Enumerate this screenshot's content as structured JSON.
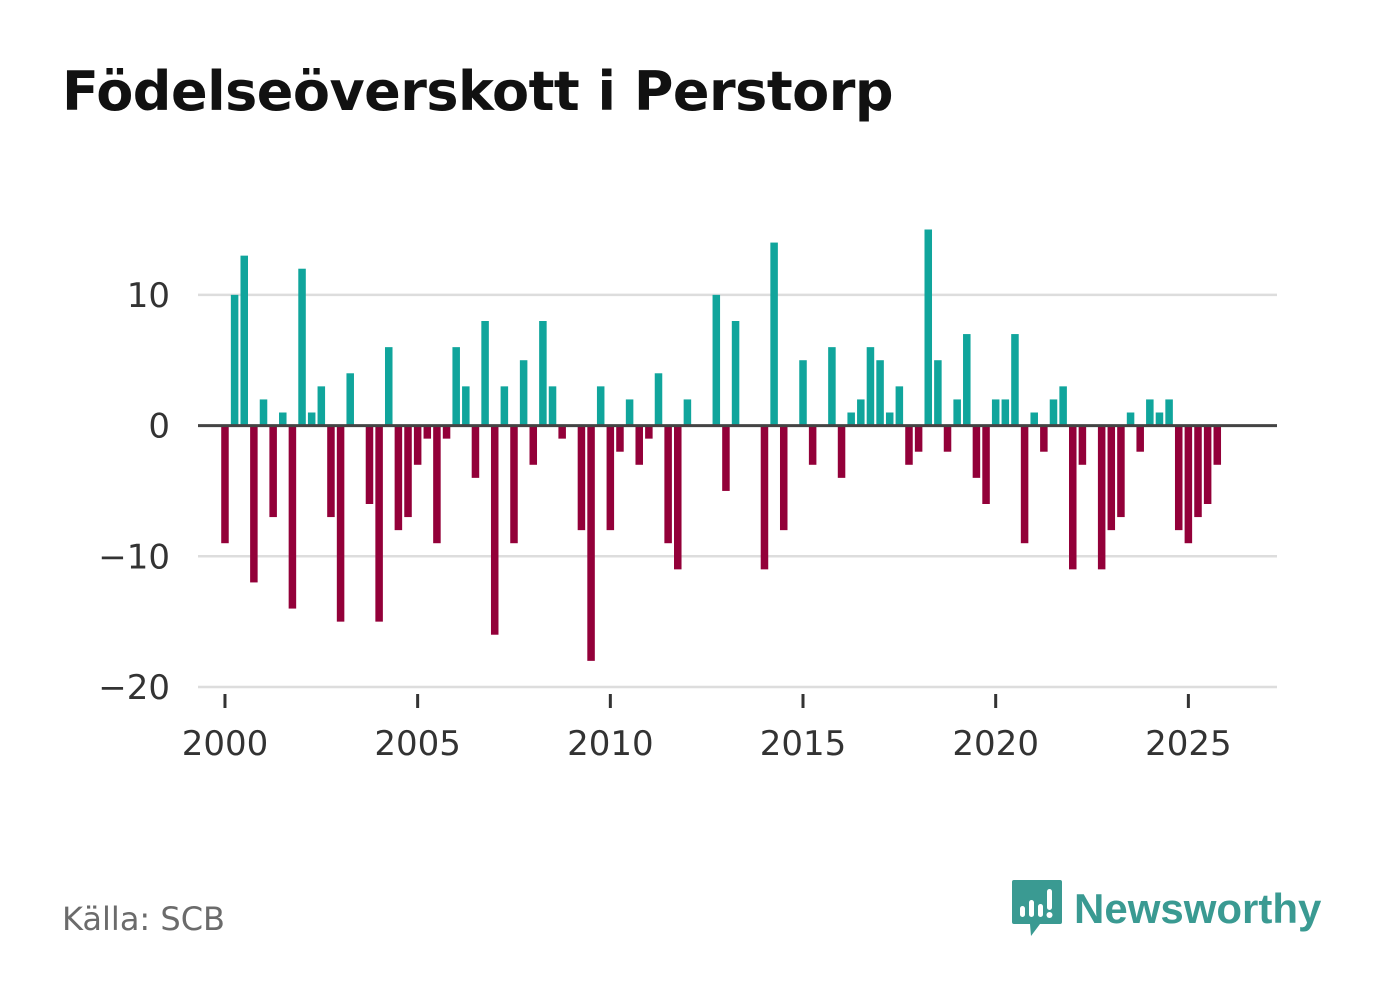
{
  "title": "Födelseöverskott i Perstorp",
  "source": "Källa: SCB",
  "brand": {
    "name": "Newsworthy",
    "icon": "newsworthy-logo-icon",
    "color": "#3a9a92"
  },
  "colors": {
    "positive": "#10a59c",
    "negative": "#930039",
    "grid": "#dddddd",
    "zero_line": "#444444"
  },
  "chart_data": {
    "type": "bar",
    "title": "Födelseöverskott i Perstorp",
    "xlabel": "",
    "ylabel": "",
    "ylim": [
      -20,
      15
    ],
    "xlim": [
      1999.3,
      2027.3
    ],
    "yticks": [
      -20,
      -10,
      0,
      10
    ],
    "ytick_labels": [
      "−20",
      "−10",
      "0",
      "10"
    ],
    "xticks": [
      2000,
      2005,
      2010,
      2015,
      2020,
      2025
    ],
    "xtick_labels": [
      "2000",
      "2005",
      "2010",
      "2015",
      "2020",
      "2025"
    ],
    "grid": true,
    "frequency": "quarterly",
    "start": 2000.0,
    "step": 0.25,
    "values": [
      -9,
      10,
      13,
      -12,
      2,
      -7,
      1,
      -14,
      12,
      1,
      3,
      -7,
      -15,
      4,
      0,
      -6,
      -15,
      6,
      -8,
      -7,
      -3,
      -1,
      -9,
      -1,
      6,
      3,
      -4,
      8,
      -16,
      3,
      -9,
      5,
      -3,
      8,
      3,
      -1,
      0,
      -8,
      -18,
      3,
      -8,
      -2,
      2,
      -3,
      -1,
      4,
      -9,
      -11,
      2,
      0,
      0,
      10,
      -5,
      8,
      0,
      0,
      -11,
      14,
      -8,
      0,
      5,
      -3,
      0,
      6,
      -4,
      1,
      2,
      6,
      5,
      1,
      3,
      -3,
      -2,
      15,
      5,
      -2,
      2,
      7,
      -4,
      -6,
      2,
      2,
      7,
      -9,
      1,
      -2,
      2,
      3,
      -11,
      -3,
      0,
      -11,
      -8,
      -7,
      1,
      -2,
      2,
      1,
      2,
      -8,
      -9,
      -7,
      -6,
      -3
    ]
  }
}
